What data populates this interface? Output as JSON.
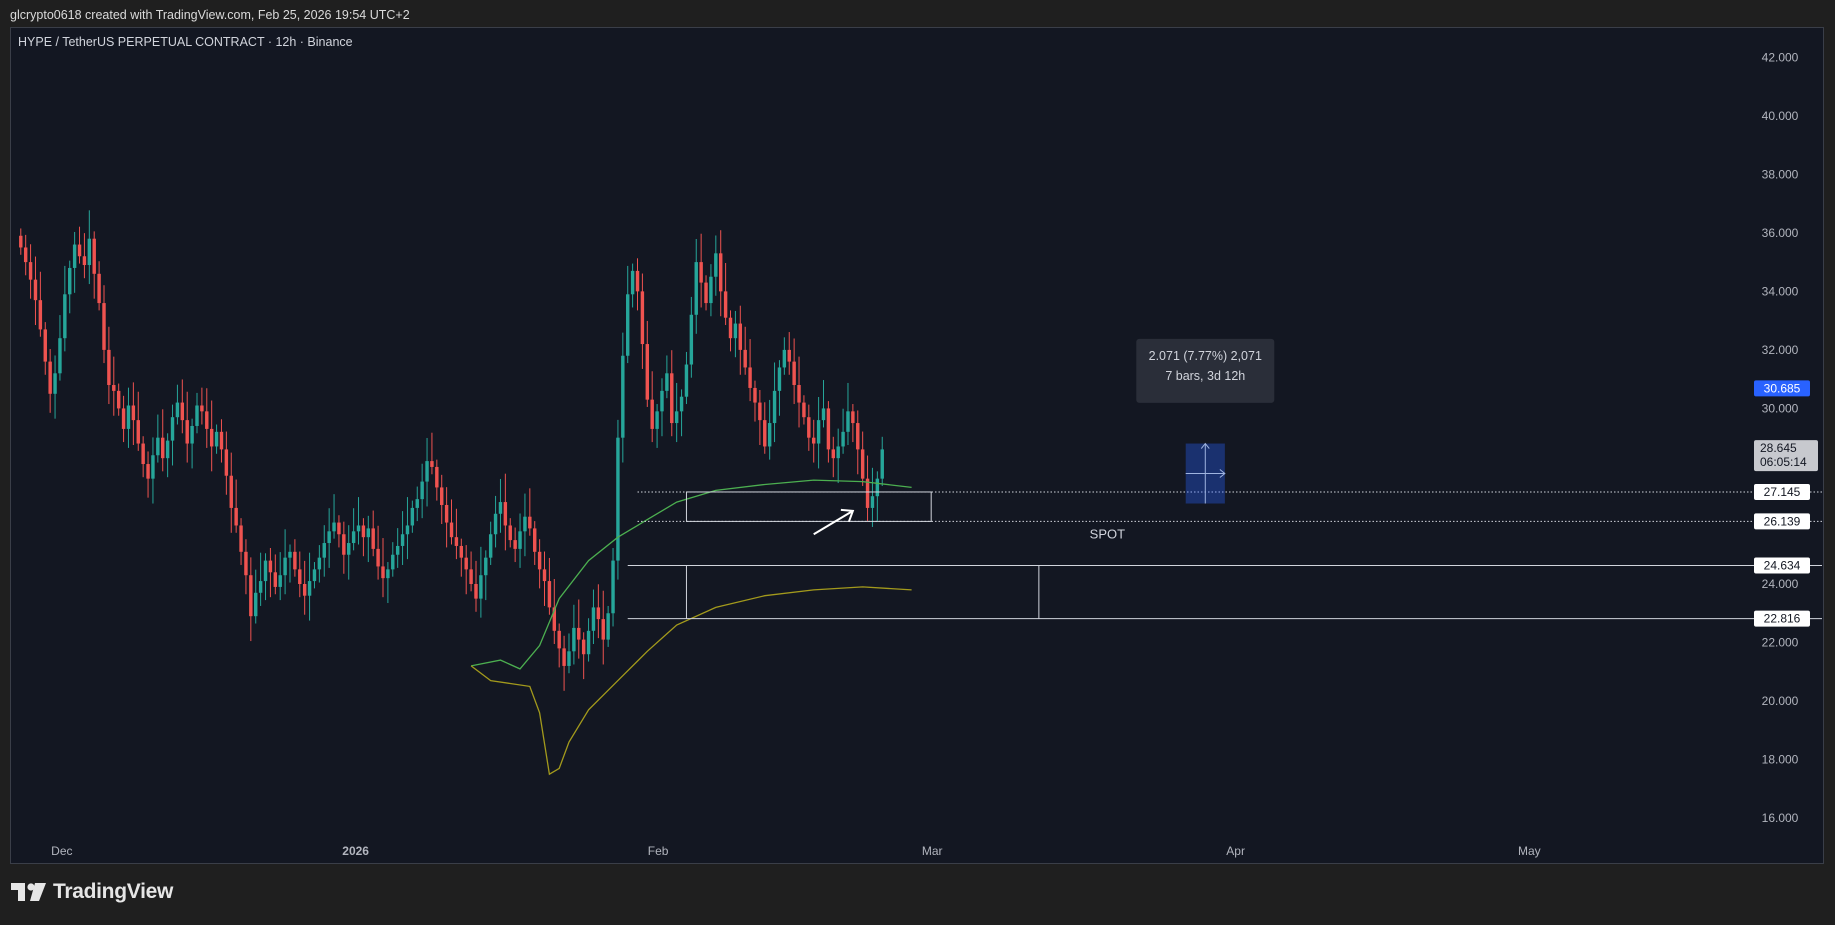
{
  "attribution": "glcrypto0618 created with TradingView.com, Feb 25, 2026 19:54 UTC+2",
  "symbol_title": "HYPE / TetherUS PERPETUAL CONTRACT · 12h · Binance",
  "brand": {
    "name": "TradingView",
    "icon": "tradingview-logo-icon"
  },
  "colors": {
    "up": "#26a69a",
    "down": "#ef5350",
    "background": "#131722",
    "ma_green": "#4caf50",
    "ma_olive": "#a39a1c",
    "price_tag_blue": "#2962ff"
  },
  "chart_data": {
    "type": "candlestick",
    "title": "HYPE / TetherUS PERPETUAL CONTRACT · 12h · Binance",
    "ylim": [
      14.5,
      43
    ],
    "xlim": [
      "2025-11-27",
      "2026-05-31"
    ],
    "y_ticks": [
      "42.000",
      "40.000",
      "38.000",
      "36.000",
      "34.000",
      "32.000",
      "30.000",
      "24.000",
      "22.000",
      "20.000",
      "18.000",
      "16.000"
    ],
    "x_ticks": [
      {
        "date": "2025-12-01",
        "label": "Dec",
        "bold": false
      },
      {
        "date": "2026-01-01",
        "label": "2026",
        "bold": true
      },
      {
        "date": "2026-02-01",
        "label": "Feb",
        "bold": false
      },
      {
        "date": "2026-03-01",
        "label": "Mar",
        "bold": false
      },
      {
        "date": "2026-04-01",
        "label": "Apr",
        "bold": false
      },
      {
        "date": "2026-05-01",
        "label": "May",
        "bold": false
      }
    ],
    "closes": [
      35.5,
      35.0,
      34.4,
      33.7,
      32.7,
      31.6,
      30.5,
      31.2,
      32.4,
      33.9,
      34.8,
      35.6,
      35.2,
      34.9,
      35.8,
      34.6,
      33.6,
      32.0,
      30.8,
      30.6,
      30.0,
      29.3,
      30.1,
      29.6,
      28.8,
      28.1,
      27.6,
      28.4,
      29.0,
      28.3,
      28.9,
      29.7,
      30.2,
      29.6,
      28.8,
      29.4,
      30.1,
      29.9,
      29.3,
      28.7,
      29.2,
      28.6,
      27.7,
      26.6,
      26.0,
      25.1,
      24.3,
      22.9,
      23.7,
      24.1,
      24.8,
      24.4,
      23.9,
      24.3,
      24.9,
      25.1,
      24.5,
      24.0,
      23.6,
      24.1,
      24.5,
      24.9,
      25.4,
      25.8,
      26.1,
      25.7,
      25.0,
      25.4,
      25.8,
      26.0,
      25.6,
      25.9,
      25.2,
      24.6,
      24.2,
      24.5,
      25.0,
      25.3,
      25.7,
      26.0,
      26.6,
      26.9,
      27.5,
      28.2,
      28.0,
      27.3,
      26.7,
      26.1,
      25.6,
      25.3,
      24.9,
      24.5,
      24.0,
      23.5,
      24.3,
      24.9,
      25.7,
      26.4,
      26.8,
      26.0,
      25.5,
      25.2,
      25.8,
      26.3,
      25.9,
      25.1,
      24.5,
      24.1,
      23.2,
      22.4,
      21.8,
      21.2,
      21.7,
      22.5,
      22.1,
      21.6,
      22.4,
      23.2,
      22.8,
      22.1,
      23.0,
      24.8,
      29.0,
      31.8,
      33.9,
      34.7,
      34.0,
      32.2,
      30.3,
      29.3,
      29.9,
      30.6,
      31.2,
      29.5,
      29.9,
      30.4,
      31.5,
      33.2,
      35.0,
      34.3,
      33.6,
      34.5,
      35.3,
      34.0,
      33.1,
      32.4,
      32.9,
      32.0,
      31.4,
      30.7,
      30.2,
      29.6,
      28.7,
      29.5,
      30.6,
      31.4,
      32.0,
      31.6,
      30.8,
      30.2,
      29.7,
      29.0,
      28.8,
      29.6,
      30.0,
      28.6,
      28.3,
      28.7,
      29.2,
      29.9,
      29.5,
      28.6,
      27.6,
      26.6,
      27.0,
      27.6,
      28.6
    ],
    "sma_green": [
      {
        "date": "2026-01-13",
        "value": 21.2
      },
      {
        "date": "2026-01-16",
        "value": 21.4
      },
      {
        "date": "2026-01-18",
        "value": 21.1
      },
      {
        "date": "2026-01-20",
        "value": 21.9
      },
      {
        "date": "2026-01-22",
        "value": 23.5
      },
      {
        "date": "2026-01-25",
        "value": 24.8
      },
      {
        "date": "2026-01-28",
        "value": 25.6
      },
      {
        "date": "2026-01-31",
        "value": 26.2
      },
      {
        "date": "2026-02-03",
        "value": 26.8
      },
      {
        "date": "2026-02-07",
        "value": 27.2
      },
      {
        "date": "2026-02-12",
        "value": 27.4
      },
      {
        "date": "2026-02-17",
        "value": 27.55
      },
      {
        "date": "2026-02-22",
        "value": 27.5
      },
      {
        "date": "2026-02-27",
        "value": 27.3
      }
    ],
    "sma_olive": [
      {
        "date": "2026-01-13",
        "value": 21.2
      },
      {
        "date": "2026-01-15",
        "value": 20.7
      },
      {
        "date": "2026-01-17",
        "value": 20.6
      },
      {
        "date": "2026-01-19",
        "value": 20.5
      },
      {
        "date": "2026-01-20",
        "value": 19.6
      },
      {
        "date": "2026-01-21",
        "value": 17.5
      },
      {
        "date": "2026-01-22",
        "value": 17.7
      },
      {
        "date": "2026-01-23",
        "value": 18.6
      },
      {
        "date": "2026-01-25",
        "value": 19.7
      },
      {
        "date": "2026-01-28",
        "value": 20.7
      },
      {
        "date": "2026-01-31",
        "value": 21.7
      },
      {
        "date": "2026-02-03",
        "value": 22.6
      },
      {
        "date": "2026-02-07",
        "value": 23.2
      },
      {
        "date": "2026-02-12",
        "value": 23.6
      },
      {
        "date": "2026-02-17",
        "value": 23.8
      },
      {
        "date": "2026-02-22",
        "value": 23.9
      },
      {
        "date": "2026-02-27",
        "value": 23.8
      }
    ],
    "annotations": {
      "upper_box": {
        "x1": "2026-02-04",
        "x2": "2026-03-01",
        "y_top": 27.145,
        "y_bottom": 26.139
      },
      "level_lines": [
        {
          "value": 27.145,
          "label": "27.145",
          "x_start": "2026-01-30",
          "style": "dotted"
        },
        {
          "value": 26.139,
          "label": "26.139",
          "x_start": "2026-01-30",
          "style": "dotted"
        },
        {
          "value": 24.634,
          "label": "24.634",
          "x_start": "2026-01-29",
          "style": "solid"
        },
        {
          "value": 22.816,
          "label": "22.816",
          "x_start": "2026-01-29",
          "style": "solid"
        }
      ],
      "lower_box_dividers": [
        "2026-02-04",
        "2026-03-12"
      ],
      "spot_text": "SPOT",
      "spot_anchor": {
        "date": "2026-03-19",
        "value": 25.55
      },
      "arrow": {
        "from": {
          "date": "2026-02-17",
          "value": 25.7
        },
        "to": {
          "date": "2026-02-21",
          "value": 26.5
        }
      },
      "measure_box": {
        "line1": "2.071 (7.77%) 2,071",
        "line2": "7 bars, 3d 12h",
        "x1": "2026-03-27",
        "x2": "2026-03-31",
        "y_top": 28.8,
        "y_bottom": 26.75
      },
      "tooltip_anchor": {
        "date": "2026-03-29",
        "value": 31.35
      }
    },
    "price_tags": [
      {
        "value": 30.685,
        "label": "30.685",
        "style": "blue"
      },
      {
        "value": 28.645,
        "label": "28.645",
        "sublabel": "06:05:14",
        "style": "current"
      }
    ]
  }
}
